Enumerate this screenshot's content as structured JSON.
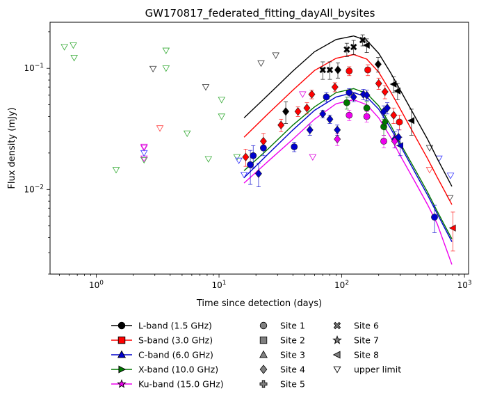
{
  "chart_data": {
    "type": "scatter",
    "title": "GW170817_federated_fitting_dayAll_bysites",
    "xlabel": "Time since detection (days)",
    "ylabel": "Flux density (mJy)",
    "xscale": "log",
    "yscale": "log",
    "xlim": [
      0.42,
      1080
    ],
    "ylim": [
      0.002,
      0.24
    ],
    "xtick_labels": [
      {
        "value": 1,
        "base": "10",
        "exp": "0"
      },
      {
        "value": 10,
        "base": "10",
        "exp": "1"
      },
      {
        "value": 100,
        "base": "10",
        "exp": "2"
      },
      {
        "value": 1000,
        "base": "10",
        "exp": "3"
      }
    ],
    "ytick_labels": [
      {
        "value": 0.01,
        "base": "10",
        "exp": "−2"
      },
      {
        "value": 0.1,
        "base": "10",
        "exp": "−1"
      }
    ],
    "grid": false,
    "legend_position": "below plot",
    "bands": [
      {
        "name": "L-band (1.5 GHz)",
        "color": "#000000",
        "marker": "circle",
        "model_curve": {
          "x": [
            16,
            25,
            40,
            60,
            90,
            125,
            160,
            200,
            250,
            300,
            400,
            500,
            600,
            790
          ],
          "y": [
            0.039,
            0.06,
            0.095,
            0.137,
            0.173,
            0.185,
            0.17,
            0.133,
            0.092,
            0.066,
            0.039,
            0.026,
            0.018,
            0.0106
          ]
        },
        "detections": [
          {
            "x": 35,
            "y": 0.044,
            "marker": "diamond",
            "err": 0.009
          },
          {
            "x": 70,
            "y": 0.097,
            "marker": "cross",
            "err": 0.016
          },
          {
            "x": 80,
            "y": 0.097,
            "marker": "cross",
            "err": 0.016
          },
          {
            "x": 93,
            "y": 0.097,
            "marker": "diamond",
            "err": 0.014
          },
          {
            "x": 110,
            "y": 0.143,
            "marker": "cross",
            "err": 0.018
          },
          {
            "x": 125,
            "y": 0.15,
            "marker": "cross",
            "err": 0.02
          },
          {
            "x": 148,
            "y": 0.171,
            "marker": "cross",
            "err": 0.018
          },
          {
            "x": 160,
            "y": 0.155,
            "marker": "left-triangle",
            "err": 0.02
          },
          {
            "x": 198,
            "y": 0.108,
            "marker": "diamond",
            "err": 0.015
          },
          {
            "x": 265,
            "y": 0.074,
            "marker": "left-triangle",
            "err": 0.011
          },
          {
            "x": 285,
            "y": 0.065,
            "marker": "left-triangle",
            "err": 0.01
          },
          {
            "x": 370,
            "y": 0.037,
            "marker": "left-triangle",
            "err": 0.009
          }
        ]
      },
      {
        "name": "S-band (3.0 GHz)",
        "color": "#ff0000",
        "marker": "square",
        "model_curve": {
          "x": [
            16,
            25,
            40,
            60,
            90,
            125,
            160,
            200,
            250,
            300,
            400,
            500,
            600,
            790
          ],
          "y": [
            0.027,
            0.042,
            0.066,
            0.096,
            0.121,
            0.13,
            0.119,
            0.093,
            0.064,
            0.046,
            0.027,
            0.018,
            0.0126,
            0.0075
          ]
        },
        "detections": [
          {
            "x": 16.5,
            "y": 0.0185,
            "marker": "diamond",
            "err": 0.003
          },
          {
            "x": 23,
            "y": 0.025,
            "marker": "diamond",
            "err": 0.004
          },
          {
            "x": 32,
            "y": 0.034,
            "marker": "diamond",
            "err": 0.004
          },
          {
            "x": 44,
            "y": 0.044,
            "marker": "diamond",
            "err": 0.004
          },
          {
            "x": 52,
            "y": 0.047,
            "marker": "diamond",
            "err": 0.005
          },
          {
            "x": 57,
            "y": 0.061,
            "marker": "diamond",
            "err": 0.005
          },
          {
            "x": 88,
            "y": 0.07,
            "marker": "diamond",
            "err": 0.006
          },
          {
            "x": 115,
            "y": 0.095,
            "marker": "circle",
            "err": 0.008
          },
          {
            "x": 163,
            "y": 0.097,
            "marker": "circle",
            "err": 0.01
          },
          {
            "x": 200,
            "y": 0.075,
            "marker": "diamond",
            "err": 0.008
          },
          {
            "x": 225,
            "y": 0.064,
            "marker": "diamond",
            "err": 0.008
          },
          {
            "x": 265,
            "y": 0.041,
            "marker": "diamond",
            "err": 0.006
          },
          {
            "x": 295,
            "y": 0.036,
            "marker": "circle",
            "err": 0.005
          },
          {
            "x": 805,
            "y": 0.0048,
            "marker": "left-triangle",
            "err": 0.0017
          }
        ]
      },
      {
        "name": "C-band (6.0 GHz)",
        "color": "#0000cc",
        "marker": "triangle",
        "model_curve": {
          "x": [
            16,
            25,
            40,
            60,
            90,
            125,
            160,
            200,
            250,
            300,
            400,
            500,
            600,
            790
          ],
          "y": [
            0.0125,
            0.0195,
            0.031,
            0.045,
            0.058,
            0.063,
            0.058,
            0.046,
            0.032,
            0.023,
            0.0135,
            0.009,
            0.0063,
            0.0037
          ]
        },
        "detections": [
          {
            "x": 18,
            "y": 0.016,
            "marker": "circle",
            "err": 0.005
          },
          {
            "x": 19,
            "y": 0.019,
            "marker": "circle",
            "err": 0.004
          },
          {
            "x": 21,
            "y": 0.0135,
            "marker": "diamond",
            "err": 0.003
          },
          {
            "x": 23,
            "y": 0.022,
            "marker": "circle",
            "err": 0.003
          },
          {
            "x": 41,
            "y": 0.0225,
            "marker": "circle",
            "err": 0.002
          },
          {
            "x": 55,
            "y": 0.031,
            "marker": "diamond",
            "err": 0.003
          },
          {
            "x": 70,
            "y": 0.042,
            "marker": "diamond",
            "err": 0.003
          },
          {
            "x": 75,
            "y": 0.058,
            "marker": "circle",
            "err": 0.005
          },
          {
            "x": 80,
            "y": 0.038,
            "marker": "diamond",
            "err": 0.003
          },
          {
            "x": 92,
            "y": 0.031,
            "marker": "diamond",
            "err": 0.003
          },
          {
            "x": 115,
            "y": 0.063,
            "marker": "circle",
            "err": 0.005
          },
          {
            "x": 125,
            "y": 0.058,
            "marker": "diamond",
            "err": 0.005
          },
          {
            "x": 150,
            "y": 0.061,
            "marker": "diamond",
            "err": 0.006
          },
          {
            "x": 160,
            "y": 0.06,
            "marker": "diamond",
            "err": 0.006
          },
          {
            "x": 220,
            "y": 0.044,
            "marker": "diamond",
            "err": 0.005
          },
          {
            "x": 235,
            "y": 0.047,
            "marker": "diamond",
            "err": 0.005
          },
          {
            "x": 270,
            "y": 0.026,
            "marker": "diamond",
            "err": 0.004
          },
          {
            "x": 290,
            "y": 0.027,
            "marker": "diamond",
            "err": 0.004
          },
          {
            "x": 300,
            "y": 0.023,
            "marker": "left-triangle",
            "err": 0.004
          },
          {
            "x": 570,
            "y": 0.0059,
            "marker": "circle",
            "err": 0.0015
          }
        ]
      },
      {
        "name": "X-band (10.0 GHz)",
        "color": "#007700",
        "marker": "right-triangle",
        "model_curve": {
          "x": [
            16,
            25,
            40,
            60,
            90,
            125,
            160,
            200,
            250,
            300,
            400,
            500,
            600,
            790
          ],
          "y": [
            0.0143,
            0.0215,
            0.034,
            0.048,
            0.063,
            0.068,
            0.062,
            0.049,
            0.034,
            0.024,
            0.0143,
            0.0095,
            0.0066,
            0.0039
          ]
        },
        "detections": [
          {
            "x": 110,
            "y": 0.052,
            "marker": "circle",
            "err": 0.006
          },
          {
            "x": 160,
            "y": 0.047,
            "marker": "circle",
            "err": 0.006
          },
          {
            "x": 220,
            "y": 0.033,
            "marker": "circle",
            "err": 0.005
          },
          {
            "x": 225,
            "y": 0.036,
            "marker": "diamond",
            "err": 0.005
          }
        ]
      },
      {
        "name": "Ku-band (15.0 GHz)",
        "color": "#ee00ee",
        "marker": "star",
        "model_curve": {
          "x": [
            16,
            25,
            40,
            60,
            90,
            125,
            160,
            200,
            250,
            300,
            400,
            500,
            600,
            790
          ],
          "y": [
            0.0113,
            0.017,
            0.026,
            0.038,
            0.051,
            0.055,
            0.05,
            0.039,
            0.027,
            0.019,
            0.0113,
            0.0075,
            0.0052,
            0.0024
          ]
        },
        "detections": [
          {
            "x": 92,
            "y": 0.026,
            "marker": "diamond",
            "err": 0.003
          },
          {
            "x": 115,
            "y": 0.041,
            "marker": "circle",
            "err": 0.004
          },
          {
            "x": 160,
            "y": 0.04,
            "marker": "circle",
            "err": 0.004
          },
          {
            "x": 220,
            "y": 0.025,
            "marker": "circle",
            "err": 0.003
          },
          {
            "x": 270,
            "y": 0.025,
            "marker": "diamond",
            "err": 0.003
          }
        ]
      }
    ],
    "upper_limits": [
      {
        "x": 0.55,
        "y": 0.15,
        "color": "#33aa33"
      },
      {
        "x": 0.65,
        "y": 0.155,
        "color": "#33aa33"
      },
      {
        "x": 0.66,
        "y": 0.122,
        "color": "#33aa33"
      },
      {
        "x": 1.45,
        "y": 0.0145,
        "color": "#33aa33"
      },
      {
        "x": 2.45,
        "y": 0.0175,
        "color": "#33aa33"
      },
      {
        "x": 3.7,
        "y": 0.14,
        "color": "#33aa33"
      },
      {
        "x": 3.7,
        "y": 0.1,
        "color": "#33aa33"
      },
      {
        "x": 5.5,
        "y": 0.029,
        "color": "#33aa33"
      },
      {
        "x": 8.2,
        "y": 0.0178,
        "color": "#33aa33"
      },
      {
        "x": 10.5,
        "y": 0.055,
        "color": "#33aa33"
      },
      {
        "x": 10.5,
        "y": 0.04,
        "color": "#33aa33"
      },
      {
        "x": 14,
        "y": 0.0185,
        "color": "#33aa33"
      },
      {
        "x": 2.45,
        "y": 0.022,
        "color": "#dd00dd"
      },
      {
        "x": 2.45,
        "y": 0.0225,
        "color": "#dd00dd"
      },
      {
        "x": 2.45,
        "y": 0.018,
        "color": "#dd00dd"
      },
      {
        "x": 48,
        "y": 0.061,
        "color": "#dd00dd"
      },
      {
        "x": 58,
        "y": 0.0185,
        "color": "#dd00dd"
      },
      {
        "x": 2.45,
        "y": 0.02,
        "color": "#3333ff"
      },
      {
        "x": 14.5,
        "y": 0.0173,
        "color": "#3333ff"
      },
      {
        "x": 16,
        "y": 0.0132,
        "color": "#3333ff"
      },
      {
        "x": 620,
        "y": 0.018,
        "color": "#3333ff"
      },
      {
        "x": 770,
        "y": 0.013,
        "color": "#3333ff"
      },
      {
        "x": 3.3,
        "y": 0.032,
        "color": "#ff4444"
      },
      {
        "x": 520,
        "y": 0.0145,
        "color": "#ff4444"
      },
      {
        "x": 2.9,
        "y": 0.099,
        "color": "#333333"
      },
      {
        "x": 7.8,
        "y": 0.07,
        "color": "#333333"
      },
      {
        "x": 22,
        "y": 0.11,
        "color": "#333333"
      },
      {
        "x": 29,
        "y": 0.128,
        "color": "#333333"
      },
      {
        "x": 520,
        "y": 0.022,
        "color": "#333333"
      },
      {
        "x": 760,
        "y": 0.0085,
        "color": "#333333"
      }
    ]
  },
  "legend": {
    "bands": [
      {
        "label": "L-band (1.5 GHz)",
        "color": "#000000",
        "marker": "circle"
      },
      {
        "label": "S-band (3.0 GHz)",
        "color": "#ff0000",
        "marker": "square"
      },
      {
        "label": "C-band (6.0 GHz)",
        "color": "#0000cc",
        "marker": "triangle"
      },
      {
        "label": "X-band (10.0 GHz)",
        "color": "#007700",
        "marker": "right-triangle"
      },
      {
        "label": "Ku-band (15.0 GHz)",
        "color": "#ee00ee",
        "marker": "star"
      }
    ],
    "sites_col1": [
      {
        "label": "Site 1",
        "marker": "circle"
      },
      {
        "label": "Site 2",
        "marker": "square"
      },
      {
        "label": "Site 3",
        "marker": "triangle"
      },
      {
        "label": "Site 4",
        "marker": "diamond"
      },
      {
        "label": "Site 5",
        "marker": "plus"
      }
    ],
    "sites_col2": [
      {
        "label": "Site 6",
        "marker": "cross"
      },
      {
        "label": "Site 7",
        "marker": "star"
      },
      {
        "label": "Site 8",
        "marker": "left-triangle"
      },
      {
        "label": "upper limit",
        "marker": "down-triangle"
      }
    ]
  }
}
